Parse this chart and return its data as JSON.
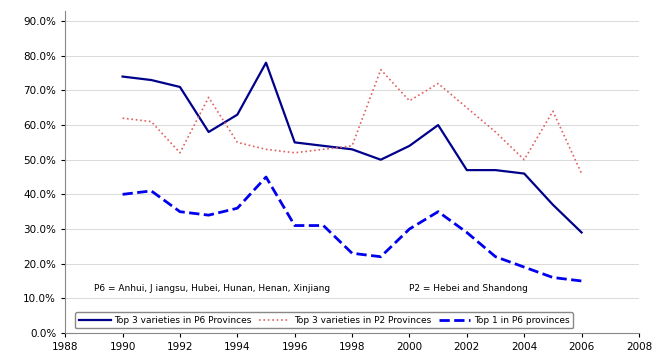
{
  "title": "",
  "xlabel": "",
  "ylabel": "",
  "xlim": [
    1988,
    2008
  ],
  "ylim": [
    0.0,
    0.93
  ],
  "xticks": [
    1988,
    1990,
    1992,
    1994,
    1996,
    1998,
    2000,
    2002,
    2004,
    2006,
    2008
  ],
  "yticks": [
    0.0,
    0.1,
    0.2,
    0.3,
    0.4,
    0.5,
    0.6,
    0.7,
    0.8,
    0.9
  ],
  "top3_p6_years": [
    1990,
    1991,
    1992,
    1993,
    1994,
    1995,
    1996,
    1997,
    1998,
    1999,
    2000,
    2001,
    2002,
    2003,
    2004,
    2005,
    2006
  ],
  "top3_p6_values": [
    0.74,
    0.73,
    0.71,
    0.58,
    0.63,
    0.78,
    0.55,
    0.54,
    0.53,
    0.5,
    0.54,
    0.6,
    0.47,
    0.47,
    0.46,
    0.37,
    0.29
  ],
  "top3_p2_years": [
    1990,
    1991,
    1992,
    1993,
    1994,
    1995,
    1996,
    1997,
    1998,
    1999,
    2000,
    2001,
    2002,
    2003,
    2004,
    2005,
    2006
  ],
  "top3_p2_values": [
    0.62,
    0.61,
    0.52,
    0.68,
    0.55,
    0.53,
    0.52,
    0.53,
    0.54,
    0.76,
    0.67,
    0.72,
    0.65,
    0.58,
    0.5,
    0.64,
    0.46
  ],
  "top1_p6_years": [
    1990,
    1991,
    1992,
    1993,
    1994,
    1995,
    1996,
    1997,
    1998,
    1999,
    2000,
    2001,
    2002,
    2003,
    2004,
    2005,
    2006
  ],
  "top1_p6_values": [
    0.4,
    0.41,
    0.35,
    0.34,
    0.36,
    0.45,
    0.31,
    0.31,
    0.23,
    0.22,
    0.3,
    0.35,
    0.29,
    0.22,
    0.19,
    0.16,
    0.15
  ],
  "line1_color": "#00008B",
  "line2_color": "#E06060",
  "line3_color": "#0000EE",
  "annotation1": "P6 = Anhui, J iangsu, Hubei, Hunan, Henan, Xinjiang",
  "annotation2": "P2 = Hebei and Shandong",
  "legend_labels": [
    "Top 3 varieties in P6 Provinces",
    "Top 3 varieties in P2 Provinces",
    "Top 1 in P6 provinces"
  ],
  "background_color": "#ffffff",
  "figsize": [
    6.52,
    3.58
  ],
  "dpi": 100
}
